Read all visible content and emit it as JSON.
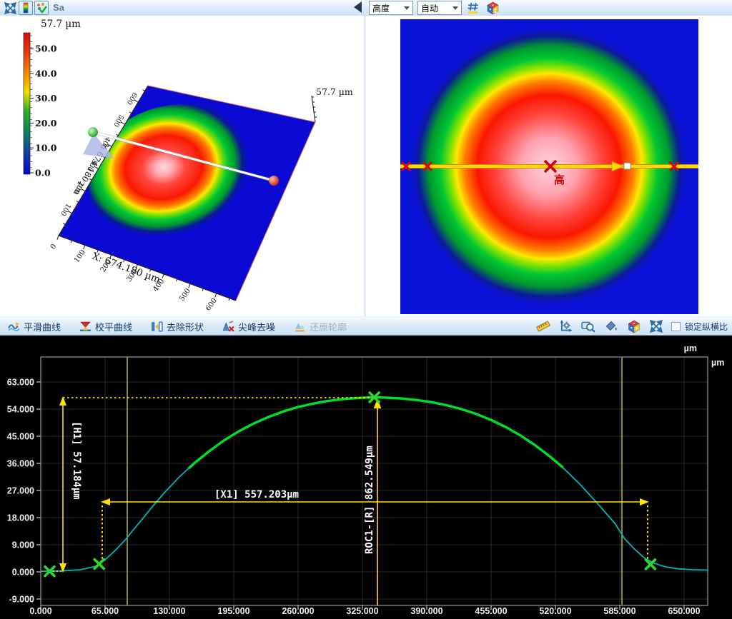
{
  "top_toolbar": {
    "sa_label": "Sa",
    "height_dropdown": "高度",
    "auto_dropdown": "自动"
  },
  "panel3d": {
    "colorbar": {
      "title": "57.7 µm",
      "ticks": [
        "50.0",
        "40.0",
        "30.0",
        "20.0",
        "10.0",
        "0.0"
      ]
    },
    "x_axis_label": "X: 674.180 µm",
    "y_axis_label": "Y: 674.180 µm",
    "z_axis_label": "57.7 µm",
    "x_ticks": [
      "0",
      "100",
      "200",
      "300",
      "400",
      "500",
      "600"
    ],
    "y_ticks": [
      "100",
      "200",
      "300",
      "400",
      "500",
      "600"
    ]
  },
  "panel2d": {
    "center_marker_label": "高"
  },
  "mid_toolbar": {
    "buttons": [
      {
        "label": "平滑曲线",
        "enabled": true
      },
      {
        "label": "校平曲线",
        "enabled": true
      },
      {
        "label": "去除形状",
        "enabled": true
      },
      {
        "label": "尖峰去噪",
        "enabled": true
      },
      {
        "label": "还原轮廓",
        "enabled": false
      }
    ],
    "lock_aspect_label": "锁定纵横比"
  },
  "chart_data": {
    "type": "line",
    "unit_label_top": "µm",
    "unit_label_right": "µm",
    "x_axis": {
      "unit": "µm",
      "ticks": [
        0,
        65,
        130,
        195,
        260,
        325,
        390,
        455,
        520,
        585,
        650
      ],
      "tick_labels": [
        "0.000",
        "65.000",
        "130.000",
        "195.000",
        "260.000",
        "325.000",
        "390.000",
        "455.000",
        "520.000",
        "585.000",
        "650.000"
      ]
    },
    "y_axis": {
      "unit": "µm",
      "ticks": [
        63,
        54,
        45,
        36,
        27,
        18,
        9,
        0,
        -9
      ],
      "tick_labels": [
        "63.000",
        "54.000",
        "45.000",
        "36.000",
        "27.000",
        "18.000",
        "9.000",
        "0.000",
        "-9.000"
      ]
    },
    "xlim": [
      0,
      674.18
    ],
    "region_boundaries_x": [
      87.4,
      587.2
    ],
    "series": [
      {
        "name": "profile",
        "color": "#00b4b8",
        "x": [
          0,
          20,
          40,
          55,
          65,
          75,
          85,
          95,
          105,
          115,
          125,
          140,
          155,
          170,
          185,
          200,
          215,
          230,
          245,
          260,
          275,
          290,
          305,
          320,
          337,
          350,
          365,
          380,
          395,
          410,
          425,
          440,
          455,
          470,
          485,
          500,
          515,
          530,
          545,
          557,
          570,
          580,
          590,
          600,
          610,
          620,
          632,
          645,
          660,
          674
        ],
        "y": [
          0.2,
          0.3,
          0.7,
          1.8,
          4.0,
          7.0,
          10.5,
          14.5,
          18.5,
          22.5,
          26.3,
          31.5,
          36.0,
          40.0,
          43.6,
          46.6,
          49.2,
          51.4,
          53.2,
          54.7,
          55.8,
          56.7,
          57.3,
          57.7,
          57.9,
          57.8,
          57.5,
          57.0,
          56.3,
          55.3,
          54.0,
          52.4,
          50.4,
          48.0,
          45.2,
          41.9,
          38.1,
          33.8,
          29.0,
          24.7,
          19.9,
          16.1,
          11.0,
          7.5,
          4.6,
          2.8,
          1.6,
          1.0,
          0.7,
          0.6
        ]
      },
      {
        "name": "roc_fit_segment",
        "color": "#00e02a",
        "x": [
          150,
          155,
          170,
          185,
          200,
          215,
          230,
          245,
          260,
          275,
          290,
          305,
          320,
          337,
          350,
          365,
          380,
          395,
          410,
          425,
          440,
          455,
          470,
          485,
          500,
          515,
          527
        ],
        "y": [
          34.5,
          36.0,
          40.0,
          43.6,
          46.6,
          49.2,
          51.4,
          53.2,
          54.7,
          55.8,
          56.7,
          57.3,
          57.7,
          57.9,
          57.8,
          57.5,
          57.0,
          56.3,
          55.3,
          54.0,
          52.4,
          50.4,
          48.0,
          45.2,
          41.9,
          38.1,
          34.8
        ]
      }
    ],
    "markers": {
      "color": "#2bdb2b",
      "points": [
        [
          9,
          0.2
        ],
        [
          59,
          2.6
        ],
        [
          337,
          57.9
        ],
        [
          616,
          2.5
        ]
      ]
    },
    "annotations": {
      "h1": {
        "label": "[H1] 57.184µm",
        "value_um": 57.184
      },
      "x1": {
        "label": "[X1] 557.203µm",
        "value_um": 557.203
      },
      "roc": {
        "label": "ROC1-[R] 862.549µm",
        "value_um": 862.549
      }
    }
  }
}
